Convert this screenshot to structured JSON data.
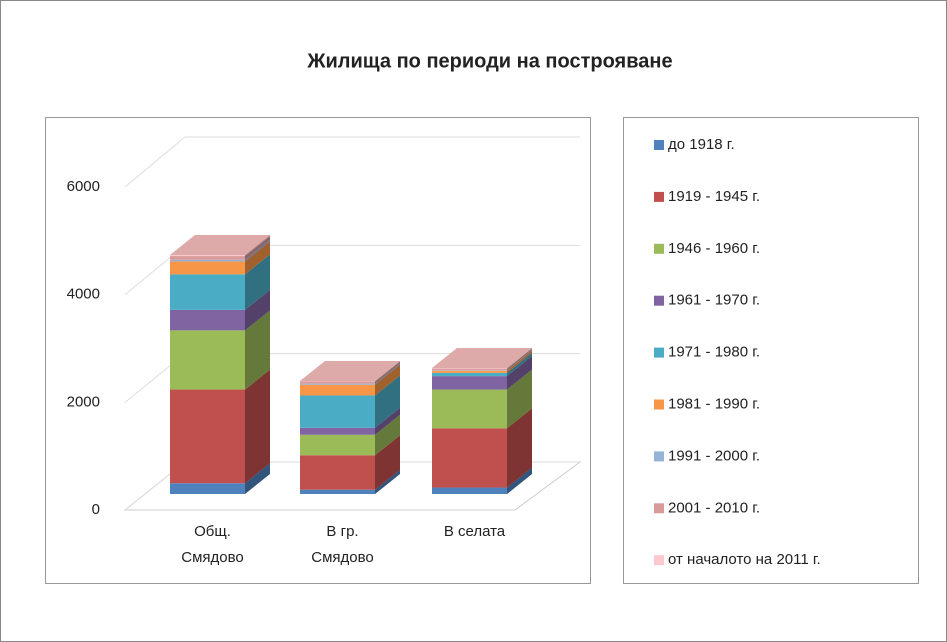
{
  "chart_data": {
    "type": "bar3d_stacked",
    "title": "Жилища по периоди на построяване",
    "categories": [
      "Общ.\nСмядово",
      "В гр.\nСмядово",
      "В селата"
    ],
    "series": [
      {
        "name": "до 1918 г.",
        "color": "#4f81bd",
        "values": [
          200,
          80,
          120
        ]
      },
      {
        "name": "1919 - 1945 г.",
        "color": "#c0504d",
        "values": [
          1740,
          640,
          1100
        ]
      },
      {
        "name": "1946 - 1960 г.",
        "color": "#9bbb59",
        "values": [
          1100,
          380,
          720
        ]
      },
      {
        "name": "1961 - 1970 г.",
        "color": "#8064a2",
        "values": [
          380,
          130,
          250
        ]
      },
      {
        "name": "1971 - 1980 г.",
        "color": "#4bacc6",
        "values": [
          660,
          600,
          60
        ]
      },
      {
        "name": "1981 - 1990 г.",
        "color": "#f79646",
        "values": [
          240,
          200,
          40
        ]
      },
      {
        "name": "1991 - 2000 г.",
        "color": "#95b3d7",
        "values": [
          30,
          20,
          10
        ]
      },
      {
        "name": "2001 - 2010 г.",
        "color": "#d99a9a",
        "values": [
          70,
          40,
          30
        ]
      },
      {
        "name": "от началото на 2011 г.",
        "color": "#ffc7ce",
        "values": [
          20,
          10,
          10
        ]
      }
    ],
    "ylim": [
      0,
      6000
    ],
    "yticks": [
      0,
      2000,
      4000,
      6000
    ],
    "grid": true,
    "legend": "right"
  }
}
